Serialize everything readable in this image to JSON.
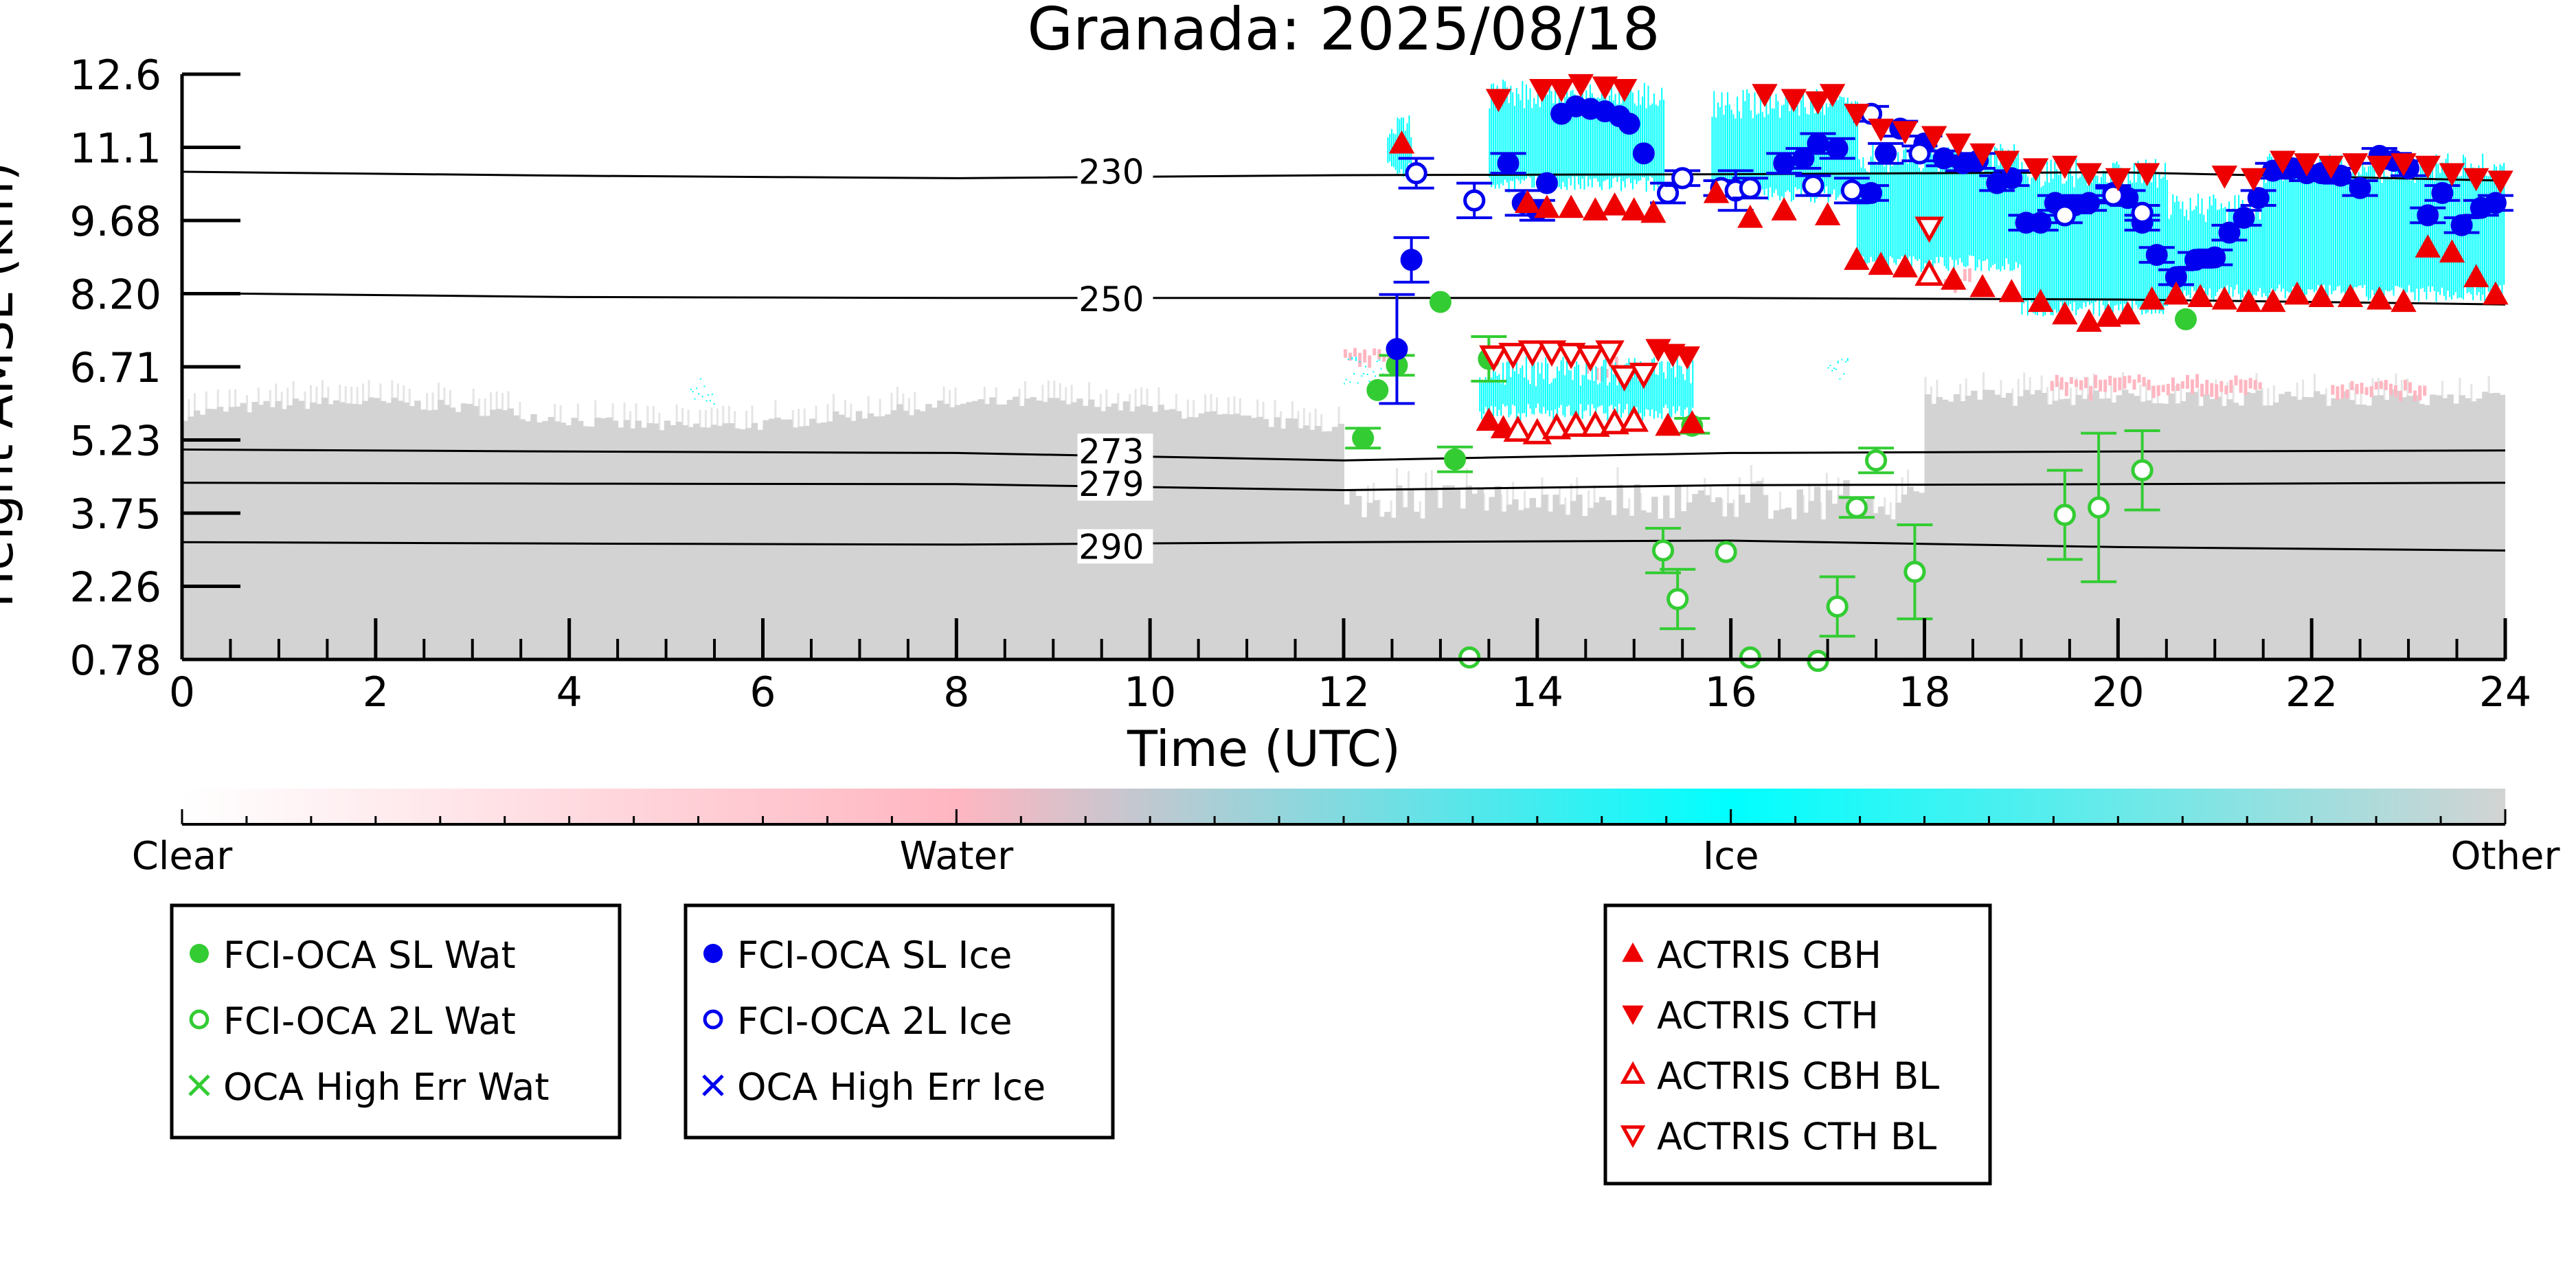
{
  "chart_data": {
    "type": "scatter",
    "title": "Granada: 2025/08/18",
    "xlabel": "Time (UTC)",
    "ylabel": "Height AMSL (km)",
    "xlim": [
      0,
      24
    ],
    "ylim": [
      0.78,
      12.6
    ],
    "x_ticks": [
      "0",
      "2",
      "4",
      "6",
      "8",
      "10",
      "12",
      "14",
      "16",
      "18",
      "20",
      "22",
      "24"
    ],
    "y_ticks": [
      "0.78",
      "2.26",
      "3.75",
      "5.23",
      "6.71",
      "8.20",
      "9.68",
      "11.1",
      "12.6"
    ],
    "grid": false,
    "background": "lidar cloud classification (Clear / Water / Ice / Other)",
    "colorbar": {
      "labels": [
        "Clear",
        "Water",
        "Ice",
        "Other"
      ],
      "colors": [
        "#ffffff",
        "#ffb6c1",
        "#00ffff",
        "#d3d3d3"
      ]
    },
    "isotherms": [
      {
        "label": "230",
        "points": [
          [
            0,
            10.63
          ],
          [
            4,
            10.55
          ],
          [
            8,
            10.5
          ],
          [
            12,
            10.56
          ],
          [
            16,
            10.58
          ],
          [
            20,
            10.62
          ],
          [
            24,
            10.45
          ]
        ]
      },
      {
        "label": "250",
        "points": [
          [
            0,
            8.18
          ],
          [
            4,
            8.1
          ],
          [
            8,
            8.08
          ],
          [
            12,
            8.08
          ],
          [
            16,
            8.08
          ],
          [
            20,
            8.05
          ],
          [
            24,
            7.95
          ]
        ]
      },
      {
        "label": "273",
        "points": [
          [
            0,
            5.02
          ],
          [
            4,
            4.98
          ],
          [
            8,
            4.95
          ],
          [
            12,
            4.8
          ],
          [
            16,
            4.95
          ],
          [
            20,
            4.98
          ],
          [
            24,
            5.0
          ]
        ]
      },
      {
        "label": "279",
        "points": [
          [
            0,
            4.35
          ],
          [
            4,
            4.33
          ],
          [
            8,
            4.32
          ],
          [
            12,
            4.2
          ],
          [
            16,
            4.3
          ],
          [
            20,
            4.32
          ],
          [
            24,
            4.35
          ]
        ]
      },
      {
        "label": "290",
        "points": [
          [
            0,
            3.15
          ],
          [
            4,
            3.12
          ],
          [
            8,
            3.1
          ],
          [
            12,
            3.15
          ],
          [
            16,
            3.18
          ],
          [
            20,
            3.05
          ],
          [
            24,
            2.98
          ]
        ]
      }
    ],
    "series": [
      {
        "name": "FCI-OCA SL Wat",
        "color": "#33cc33",
        "marker": "filled-circle",
        "points": [
          [
            12.2,
            5.25,
            0.2
          ],
          [
            12.35,
            6.22,
            0.1
          ],
          [
            12.55,
            6.72,
            0.2
          ],
          [
            13.0,
            8.0,
            0.1
          ],
          [
            13.15,
            4.82,
            0.25
          ],
          [
            13.5,
            6.85,
            0.45
          ],
          [
            15.6,
            5.5,
            0.15
          ],
          [
            20.7,
            7.65,
            0.1
          ]
        ]
      },
      {
        "name": "FCI-OCA 2L Wat",
        "color": "#33cc33",
        "marker": "open-circle",
        "points": [
          [
            13.3,
            0.82,
            0.1
          ],
          [
            15.3,
            2.98,
            0.45
          ],
          [
            15.45,
            2.0,
            0.6
          ],
          [
            15.95,
            2.95,
            0.12
          ],
          [
            16.2,
            0.82,
            0.1
          ],
          [
            16.9,
            0.75,
            0.1
          ],
          [
            17.1,
            1.85,
            0.6
          ],
          [
            17.3,
            3.85,
            0.2
          ],
          [
            17.5,
            4.8,
            0.25
          ],
          [
            17.9,
            2.55,
            0.95
          ],
          [
            19.45,
            3.7,
            0.9
          ],
          [
            19.8,
            3.85,
            1.5
          ],
          [
            20.25,
            4.6,
            0.8
          ]
        ]
      },
      {
        "name": "OCA High Err Wat",
        "color": "#33cc33",
        "marker": "x",
        "points": []
      },
      {
        "name": "FCI-OCA SL Ice",
        "color": "#0000ee",
        "marker": "filled-circle",
        "points": [
          [
            12.55,
            7.05,
            1.1
          ],
          [
            12.7,
            8.85,
            0.45
          ],
          [
            13.7,
            10.8,
            0.2
          ],
          [
            13.85,
            10.0,
            0.25
          ],
          [
            14.0,
            9.85,
            0.2
          ],
          [
            14.1,
            10.4,
            0.1
          ],
          [
            14.25,
            11.8,
            0.1
          ],
          [
            14.4,
            11.95,
            0.1
          ],
          [
            14.55,
            11.9,
            0.1
          ],
          [
            14.7,
            11.85,
            0.1
          ],
          [
            14.85,
            11.75,
            0.1
          ],
          [
            14.95,
            11.6,
            0.1
          ],
          [
            15.1,
            11.0,
            0.1
          ],
          [
            16.55,
            10.8,
            0.2
          ],
          [
            16.75,
            10.9,
            0.2
          ],
          [
            16.9,
            11.2,
            0.2
          ],
          [
            17.1,
            11.1,
            0.2
          ],
          [
            17.45,
            10.2,
            0.15
          ],
          [
            17.6,
            11.0,
            0.2
          ],
          [
            17.75,
            11.5,
            0.15
          ],
          [
            18.0,
            11.2,
            0.15
          ],
          [
            18.2,
            10.9,
            0.15
          ],
          [
            18.4,
            10.8,
            0.15
          ],
          [
            18.55,
            10.85,
            0.15
          ],
          [
            18.75,
            10.4,
            0.15
          ],
          [
            18.9,
            10.5,
            0.15
          ],
          [
            19.05,
            9.6,
            0.15
          ],
          [
            19.2,
            9.6,
            0.15
          ],
          [
            19.35,
            10.0,
            0.15
          ],
          [
            19.55,
            9.95,
            0.15
          ],
          [
            19.7,
            10.0,
            0.15
          ],
          [
            19.95,
            10.2,
            0.15
          ],
          [
            20.1,
            10.1,
            0.15
          ],
          [
            20.25,
            9.6,
            0.15
          ],
          [
            20.4,
            8.95,
            0.15
          ],
          [
            20.6,
            8.5,
            0.15
          ],
          [
            20.8,
            8.85,
            0.15
          ],
          [
            21.0,
            8.9,
            0.15
          ],
          [
            21.15,
            9.4,
            0.15
          ],
          [
            21.3,
            9.7,
            0.15
          ],
          [
            21.45,
            10.1,
            0.15
          ],
          [
            21.6,
            10.65,
            0.15
          ],
          [
            21.8,
            10.7,
            0.15
          ],
          [
            21.95,
            10.6,
            0.15
          ],
          [
            22.1,
            10.6,
            0.15
          ],
          [
            22.3,
            10.55,
            0.15
          ],
          [
            22.5,
            10.3,
            0.15
          ],
          [
            22.7,
            10.95,
            0.15
          ],
          [
            22.85,
            10.85,
            0.15
          ],
          [
            23.0,
            10.7,
            0.15
          ],
          [
            23.2,
            9.75,
            0.15
          ],
          [
            23.35,
            10.2,
            0.15
          ],
          [
            23.55,
            9.55,
            0.15
          ],
          [
            23.75,
            9.9,
            0.15
          ],
          [
            23.9,
            10.0,
            0.15
          ]
        ]
      },
      {
        "name": "FCI-OCA 2L Ice",
        "color": "#0000ee",
        "marker": "open-circle",
        "points": [
          [
            12.75,
            10.6,
            0.3
          ],
          [
            13.35,
            10.05,
            0.35
          ],
          [
            15.35,
            10.2,
            0.2
          ],
          [
            15.5,
            10.5,
            0.15
          ],
          [
            15.9,
            10.3,
            0.15
          ],
          [
            16.05,
            10.25,
            0.4
          ],
          [
            16.2,
            10.3,
            0.2
          ],
          [
            16.85,
            10.35,
            0.2
          ],
          [
            17.25,
            10.25,
            0.25
          ],
          [
            17.45,
            11.8,
            0.15
          ],
          [
            17.95,
            11.0,
            0.15
          ],
          [
            19.45,
            9.75,
            0.15
          ],
          [
            19.95,
            10.15,
            0.15
          ],
          [
            20.25,
            9.8,
            0.15
          ]
        ]
      },
      {
        "name": "OCA High Err Ice",
        "color": "#0000ee",
        "marker": "x",
        "points": []
      },
      {
        "name": "ACTRIS CBH",
        "color": "#ee0000",
        "marker": "triangle-up",
        "points": [
          [
            12.6,
            11.2
          ],
          [
            13.5,
            5.6
          ],
          [
            13.65,
            5.45
          ],
          [
            13.8,
            5.4
          ],
          [
            13.9,
            10.0
          ],
          [
            14.1,
            9.9
          ],
          [
            14.35,
            9.9
          ],
          [
            14.6,
            9.85
          ],
          [
            14.8,
            9.95
          ],
          [
            15.0,
            9.85
          ],
          [
            15.2,
            9.8
          ],
          [
            15.35,
            5.5
          ],
          [
            15.6,
            5.55
          ],
          [
            15.85,
            10.2
          ],
          [
            16.2,
            9.7
          ],
          [
            16.55,
            9.85
          ],
          [
            17.0,
            9.75
          ],
          [
            17.3,
            8.85
          ],
          [
            17.55,
            8.75
          ],
          [
            17.8,
            8.7
          ],
          [
            18.05,
            8.55
          ],
          [
            18.3,
            8.45
          ],
          [
            18.6,
            8.3
          ],
          [
            18.9,
            8.2
          ],
          [
            19.2,
            8.0
          ],
          [
            19.45,
            7.75
          ],
          [
            19.7,
            7.6
          ],
          [
            19.9,
            7.7
          ],
          [
            20.1,
            7.75
          ],
          [
            20.35,
            8.05
          ],
          [
            20.6,
            8.15
          ],
          [
            20.85,
            8.1
          ],
          [
            21.1,
            8.05
          ],
          [
            21.35,
            8.0
          ],
          [
            21.6,
            8.0
          ],
          [
            21.85,
            8.15
          ],
          [
            22.1,
            8.1
          ],
          [
            22.4,
            8.1
          ],
          [
            22.7,
            8.05
          ],
          [
            22.95,
            8.0
          ],
          [
            23.2,
            9.1
          ],
          [
            23.45,
            9.0
          ],
          [
            23.7,
            8.5
          ],
          [
            23.9,
            8.15
          ]
        ]
      },
      {
        "name": "ACTRIS CTH",
        "color": "#ee0000",
        "marker": "triangle-down",
        "points": [
          [
            13.6,
            12.1
          ],
          [
            14.05,
            12.3
          ],
          [
            14.25,
            12.3
          ],
          [
            14.45,
            12.4
          ],
          [
            14.7,
            12.35
          ],
          [
            14.9,
            12.3
          ],
          [
            15.25,
            7.05
          ],
          [
            15.4,
            6.95
          ],
          [
            15.55,
            6.9
          ],
          [
            16.35,
            12.2
          ],
          [
            16.65,
            12.1
          ],
          [
            16.9,
            12.05
          ],
          [
            17.05,
            12.2
          ],
          [
            17.3,
            11.8
          ],
          [
            17.55,
            11.5
          ],
          [
            17.8,
            11.45
          ],
          [
            18.1,
            11.35
          ],
          [
            18.35,
            11.2
          ],
          [
            18.6,
            11.0
          ],
          [
            18.85,
            10.85
          ],
          [
            19.15,
            10.7
          ],
          [
            19.45,
            10.75
          ],
          [
            19.7,
            10.6
          ],
          [
            20.0,
            10.5
          ],
          [
            20.3,
            10.6
          ],
          [
            21.1,
            10.55
          ],
          [
            21.4,
            10.5
          ],
          [
            21.7,
            10.85
          ],
          [
            21.95,
            10.8
          ],
          [
            22.2,
            10.75
          ],
          [
            22.45,
            10.8
          ],
          [
            22.7,
            10.75
          ],
          [
            22.95,
            10.8
          ],
          [
            23.2,
            10.75
          ],
          [
            23.45,
            10.6
          ],
          [
            23.7,
            10.5
          ],
          [
            23.95,
            10.45
          ]
        ]
      },
      {
        "name": "ACTRIS CBH BL",
        "color": "#ee0000",
        "marker": "open-triangle-up",
        "points": [
          [
            13.8,
            5.4
          ],
          [
            14.0,
            5.35
          ],
          [
            14.2,
            5.45
          ],
          [
            14.4,
            5.5
          ],
          [
            14.6,
            5.5
          ],
          [
            14.8,
            5.55
          ],
          [
            15.0,
            5.6
          ],
          [
            18.05,
            8.55
          ]
        ]
      },
      {
        "name": "ACTRIS CTH BL",
        "color": "#ee0000",
        "marker": "open-triangle-down",
        "points": [
          [
            13.55,
            6.9
          ],
          [
            13.75,
            6.95
          ],
          [
            13.95,
            7.0
          ],
          [
            14.15,
            7.0
          ],
          [
            14.35,
            6.95
          ],
          [
            14.55,
            6.9
          ],
          [
            14.75,
            7.0
          ],
          [
            14.9,
            6.5
          ],
          [
            15.1,
            6.55
          ],
          [
            18.05,
            9.5
          ]
        ]
      }
    ],
    "legend_groups": [
      [
        "FCI-OCA SL Wat",
        "FCI-OCA 2L Wat",
        "OCA High Err Wat"
      ],
      [
        "FCI-OCA SL Ice",
        "FCI-OCA 2L Ice",
        "OCA High Err Ice"
      ],
      [
        "ACTRIS CBH",
        "ACTRIS CTH",
        "ACTRIS CBH BL",
        "ACTRIS CTH BL"
      ]
    ],
    "legend_position": "below"
  }
}
